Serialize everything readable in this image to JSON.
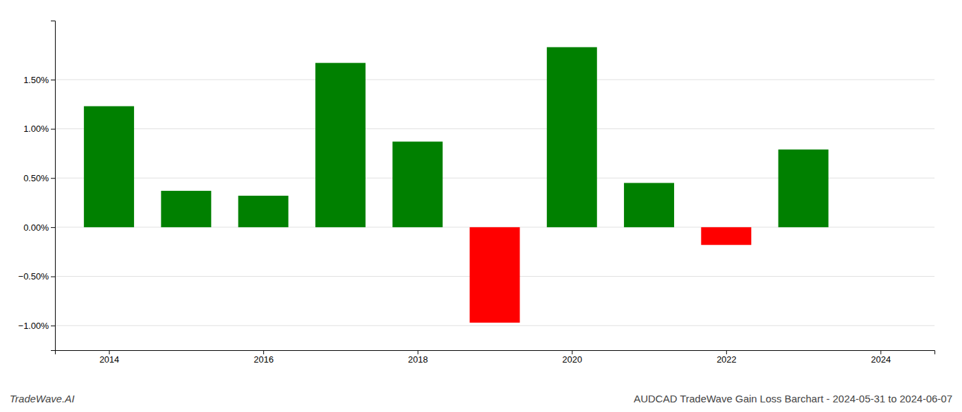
{
  "chart_data": {
    "type": "bar",
    "title": "AUDCAD TradeWave Gain Loss Barchart - 2024-05-31 to 2024-06-07",
    "annotations": [
      "TradeWave.AI"
    ],
    "x": [
      2014,
      2015,
      2016,
      2017,
      2018,
      2019,
      2020,
      2021,
      2022,
      2023
    ],
    "values": [
      1.23,
      0.37,
      0.32,
      1.67,
      0.87,
      -0.97,
      1.83,
      0.45,
      -0.18,
      0.79
    ],
    "colors": [
      "#008000",
      "#008000",
      "#008000",
      "#008000",
      "#008000",
      "#ff0000",
      "#008000",
      "#008000",
      "#ff0000",
      "#008000"
    ],
    "xlim": [
      2013.3,
      2024.7
    ],
    "xticks": [
      2014,
      2016,
      2018,
      2020,
      2022,
      2024
    ],
    "ylim": [
      -1.25,
      2.1
    ],
    "yticks": [
      {
        "value": -1.0,
        "label": "−1.00%"
      },
      {
        "value": -0.5,
        "label": "−0.50%"
      },
      {
        "value": 0.0,
        "label": "0.00%"
      },
      {
        "value": 0.5,
        "label": "0.50%"
      },
      {
        "value": 1.0,
        "label": "1.00%"
      },
      {
        "value": 1.5,
        "label": "1.50%"
      }
    ],
    "grid": true
  }
}
